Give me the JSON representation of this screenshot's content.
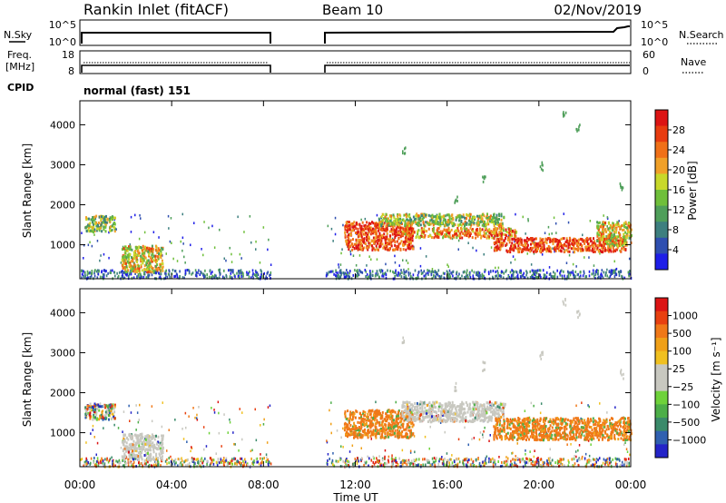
{
  "header": {
    "station": "Rankin Inlet (fitACF)",
    "beam": "Beam 10",
    "date": "02/Nov/2019"
  },
  "top_panels": {
    "nsky_label": "N.Sky",
    "nsky_ticks": [
      "10^5",
      "10^0"
    ],
    "nsearch_label": "N.Search",
    "nsearch_ticks": [
      "10^5",
      "10^0"
    ],
    "freq_label_line1": "Freq.",
    "freq_label_line2": "[MHz]",
    "freq_ticks": [
      "18",
      "8"
    ],
    "nave_label": "Nave",
    "nave_ticks": [
      "60",
      "0"
    ],
    "cpid_label": "CPID",
    "cpid_value": "normal (fast) 151"
  },
  "chart_data": [
    {
      "type": "heatmap",
      "name": "power",
      "ylabel": "Slant Range [km]",
      "yticks": [
        1000,
        2000,
        3000,
        4000
      ],
      "ylim": [
        150,
        4600
      ],
      "x_ticks_hours": [
        0,
        4,
        8,
        12,
        16,
        20,
        24
      ],
      "colorbar_label": "Power [dB]",
      "colorbar_ticks": [
        "4",
        "8",
        "12",
        "16",
        "20",
        "24",
        "28"
      ],
      "colorbar_colors": [
        "#1e1ee8",
        "#2f4fb0",
        "#3d7f7f",
        "#4f9f5a",
        "#6fbf3a",
        "#c8d82a",
        "#f0a028",
        "#f07018",
        "#e83c10",
        "#dc1414"
      ],
      "data_gap_hours": [
        8.3,
        10.7
      ],
      "features": [
        {
          "t0": 0.2,
          "t1": 1.5,
          "r0": 1350,
          "r1": 1750,
          "level": 0.45
        },
        {
          "t0": 1.8,
          "t1": 3.6,
          "r0": 350,
          "r1": 1000,
          "level": 0.6
        },
        {
          "t0": 11.5,
          "t1": 14.5,
          "r0": 900,
          "r1": 1600,
          "level": 0.85
        },
        {
          "t0": 13.0,
          "t1": 18.5,
          "r0": 1500,
          "r1": 1800,
          "level": 0.5
        },
        {
          "t0": 14.0,
          "t1": 19.0,
          "r0": 1200,
          "r1": 1450,
          "level": 0.7
        },
        {
          "t0": 18.0,
          "t1": 23.8,
          "r0": 850,
          "r1": 1200,
          "level": 0.85
        },
        {
          "t0": 22.5,
          "t1": 24.0,
          "r0": 1000,
          "r1": 1600,
          "level": 0.6
        }
      ]
    },
    {
      "type": "heatmap",
      "name": "velocity",
      "ylabel": "Slant Range [km]",
      "yticks": [
        1000,
        2000,
        3000,
        4000
      ],
      "ylim": [
        150,
        4600
      ],
      "x_ticks_hours": [
        0,
        4,
        8,
        12,
        16,
        20,
        24
      ],
      "colorbar_label": "Velocity [m s⁻¹]",
      "colorbar_ticks": [
        "1000",
        "500",
        "100",
        "25",
        "−25",
        "−100",
        "−500",
        "−1000"
      ],
      "colorbar_colors": [
        "#2424c8",
        "#3060b0",
        "#3a8a6a",
        "#4cae48",
        "#6ed23a",
        "#c8c8c0",
        "#c8c8c0",
        "#f0c020",
        "#f0a018",
        "#f07818",
        "#e84010",
        "#dc1414"
      ],
      "data_gap_hours": [
        8.3,
        10.7
      ],
      "features": [
        {
          "t0": 0.2,
          "t1": 1.5,
          "r0": 1350,
          "r1": 1750,
          "vel": "mixed"
        },
        {
          "t0": 1.8,
          "t1": 3.6,
          "r0": 350,
          "r1": 1000,
          "vel": "grey"
        },
        {
          "t0": 11.5,
          "t1": 14.5,
          "r0": 900,
          "r1": 1600,
          "vel": "orange"
        },
        {
          "t0": 14.0,
          "t1": 18.5,
          "r0": 1300,
          "r1": 1800,
          "vel": "grey"
        },
        {
          "t0": 18.0,
          "t1": 24.0,
          "r0": 850,
          "r1": 1400,
          "vel": "orange"
        }
      ]
    }
  ],
  "xaxis": {
    "ticks": [
      "00:00",
      "04:00",
      "08:00",
      "12:00",
      "16:00",
      "20:00",
      "00:00"
    ],
    "label": "Time UT"
  }
}
